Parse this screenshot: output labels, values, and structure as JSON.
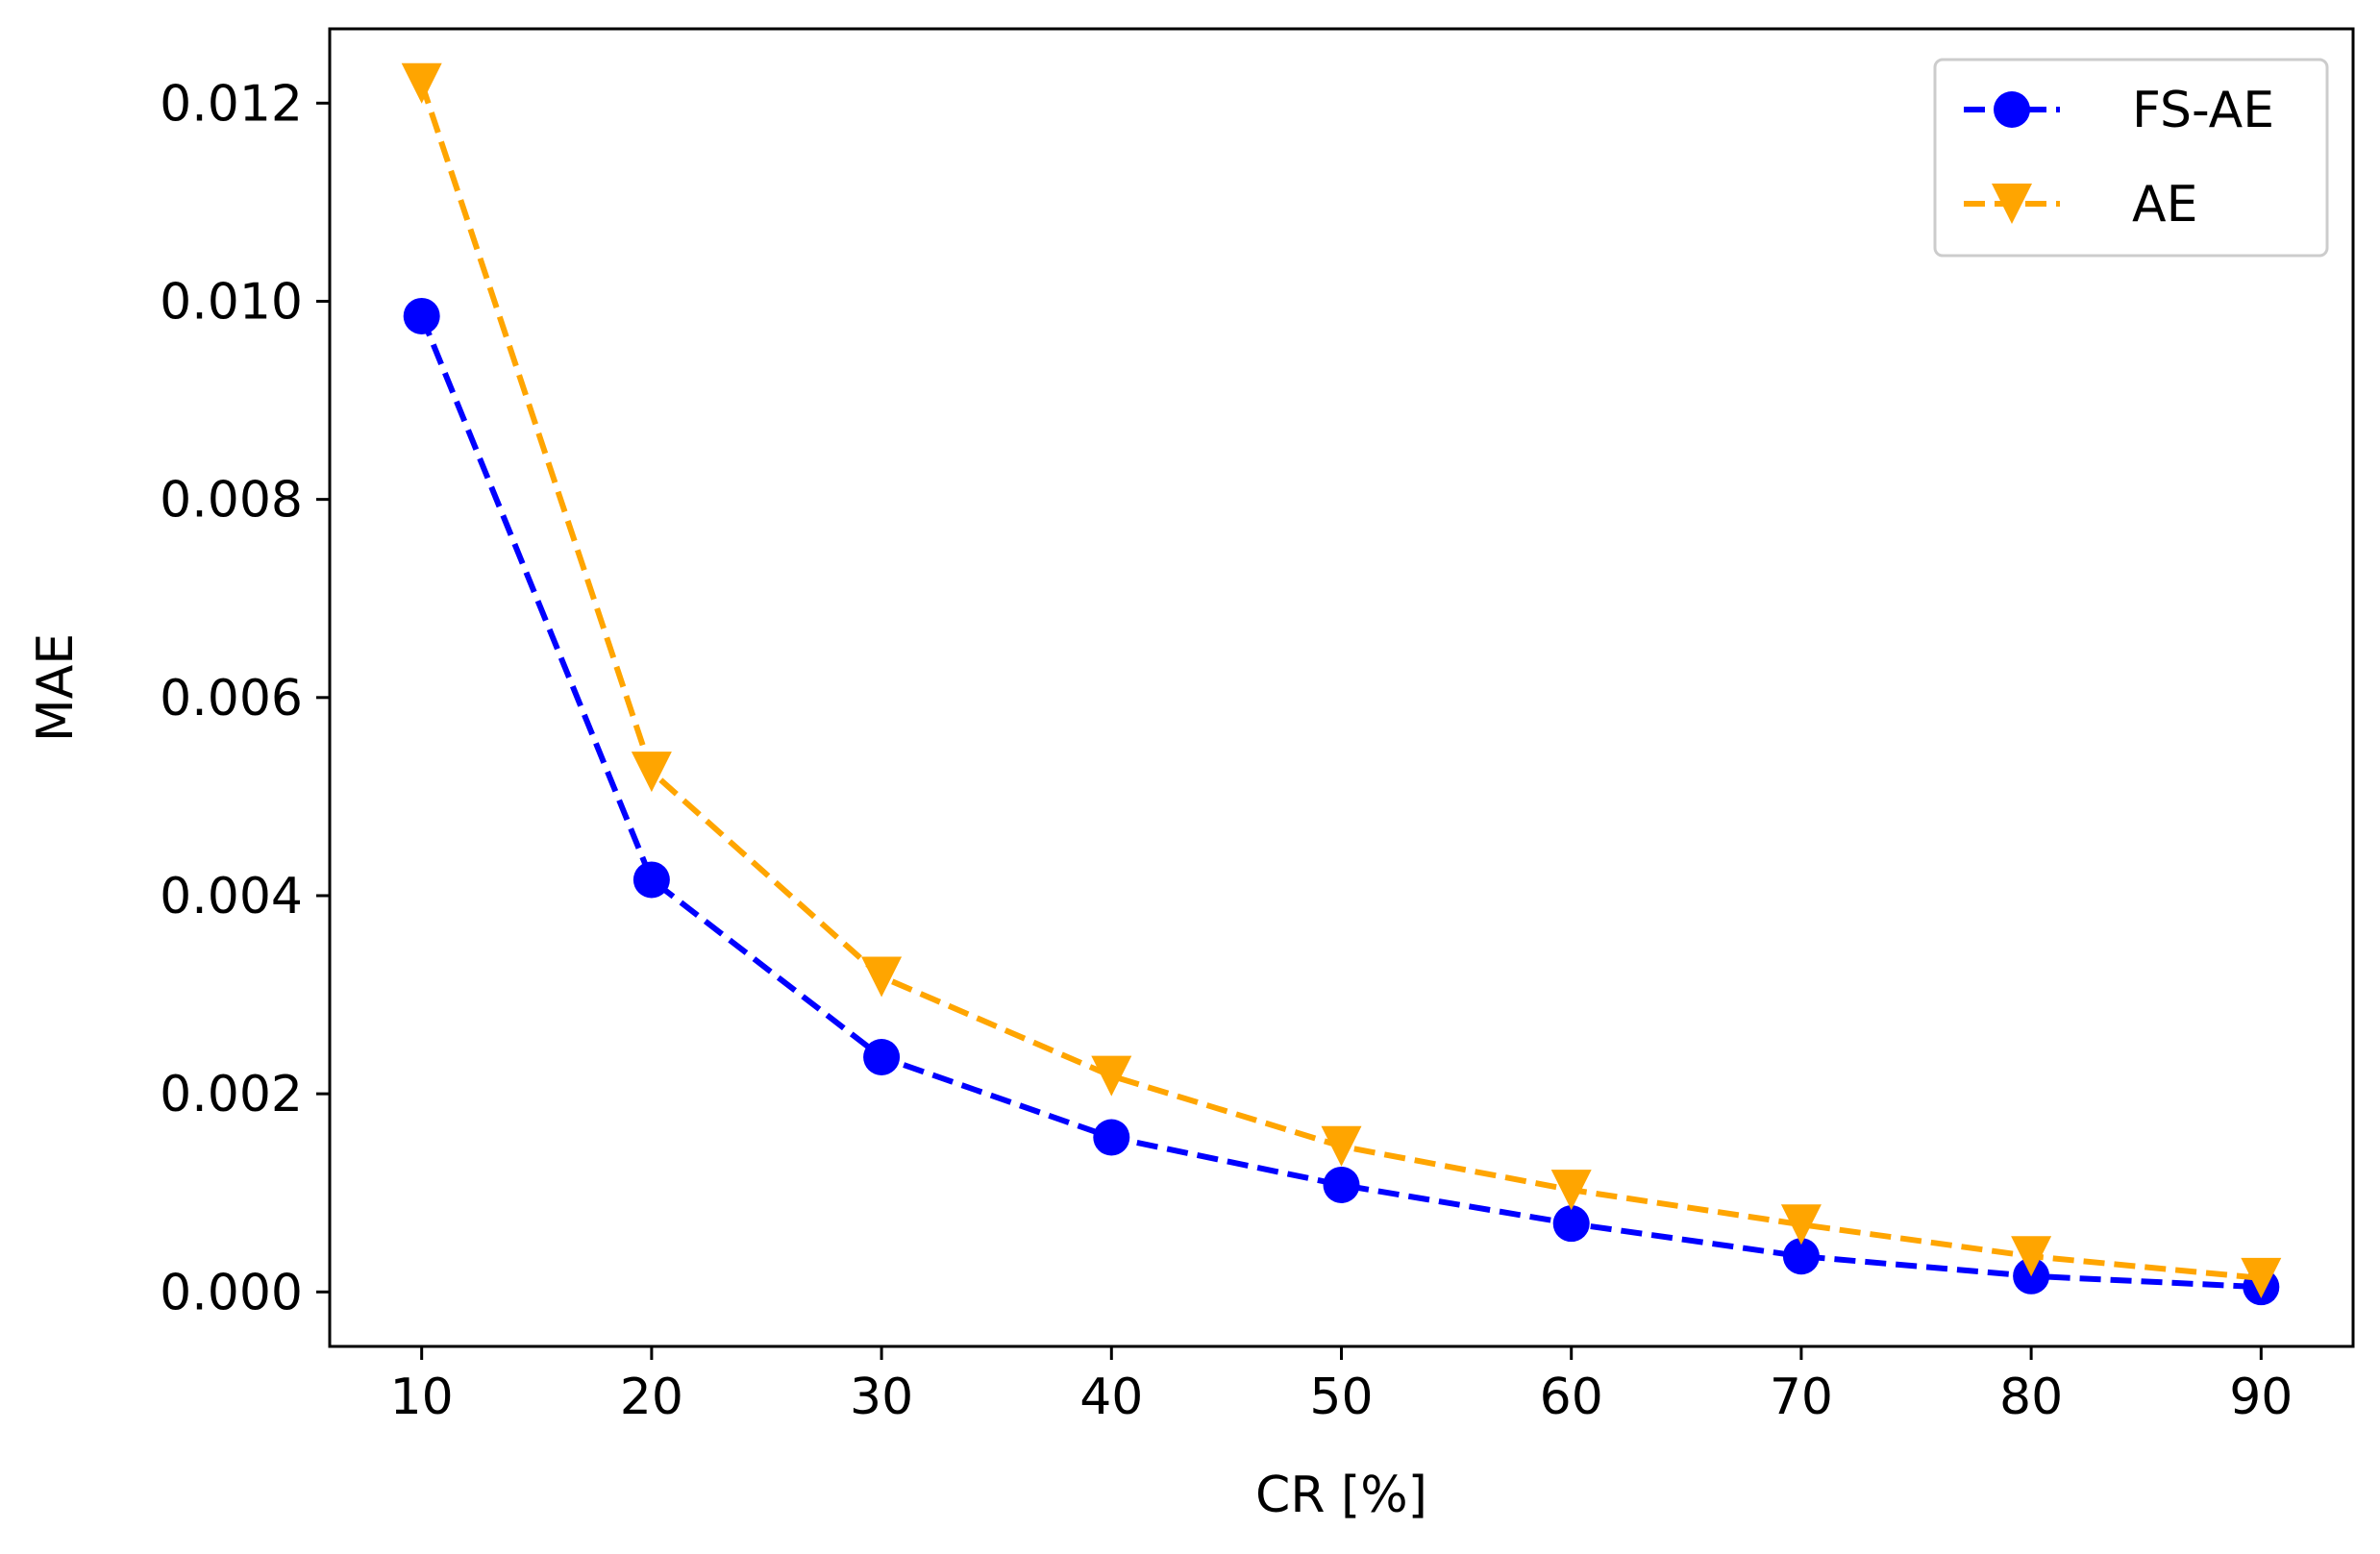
{
  "chart_data": {
    "type": "line",
    "title": "",
    "xlabel": "CR [%]",
    "ylabel": "MAE",
    "x": [
      10,
      20,
      30,
      40,
      50,
      60,
      70,
      80,
      90
    ],
    "xticks": [
      10,
      20,
      30,
      40,
      50,
      60,
      70,
      80,
      90
    ],
    "xtick_labels": [
      "10",
      "20",
      "30",
      "40",
      "50",
      "60",
      "70",
      "80",
      "90"
    ],
    "yticks": [
      0.0,
      0.002,
      0.004,
      0.006,
      0.008,
      0.01,
      0.012
    ],
    "ytick_labels": [
      "0.000",
      "0.002",
      "0.004",
      "0.006",
      "0.008",
      "0.010",
      "0.012"
    ],
    "xlim": [
      6,
      94
    ],
    "ylim": [
      -0.00055,
      0.01275
    ],
    "grid": false,
    "legend_position": "top-right",
    "series": [
      {
        "name": "FS-AE",
        "color": "#0000ff",
        "marker": "circle",
        "linestyle": "dashed",
        "values": [
          0.00985,
          0.00416,
          0.00237,
          0.00156,
          0.00108,
          0.00069,
          0.00036,
          0.00016,
          5e-05
        ]
      },
      {
        "name": "AE",
        "color": "#ffa500",
        "marker": "triangle-down",
        "linestyle": "dashed",
        "values": [
          0.0122,
          0.00525,
          0.00318,
          0.00218,
          0.00147,
          0.00103,
          0.00068,
          0.00036,
          0.00014
        ]
      }
    ]
  }
}
